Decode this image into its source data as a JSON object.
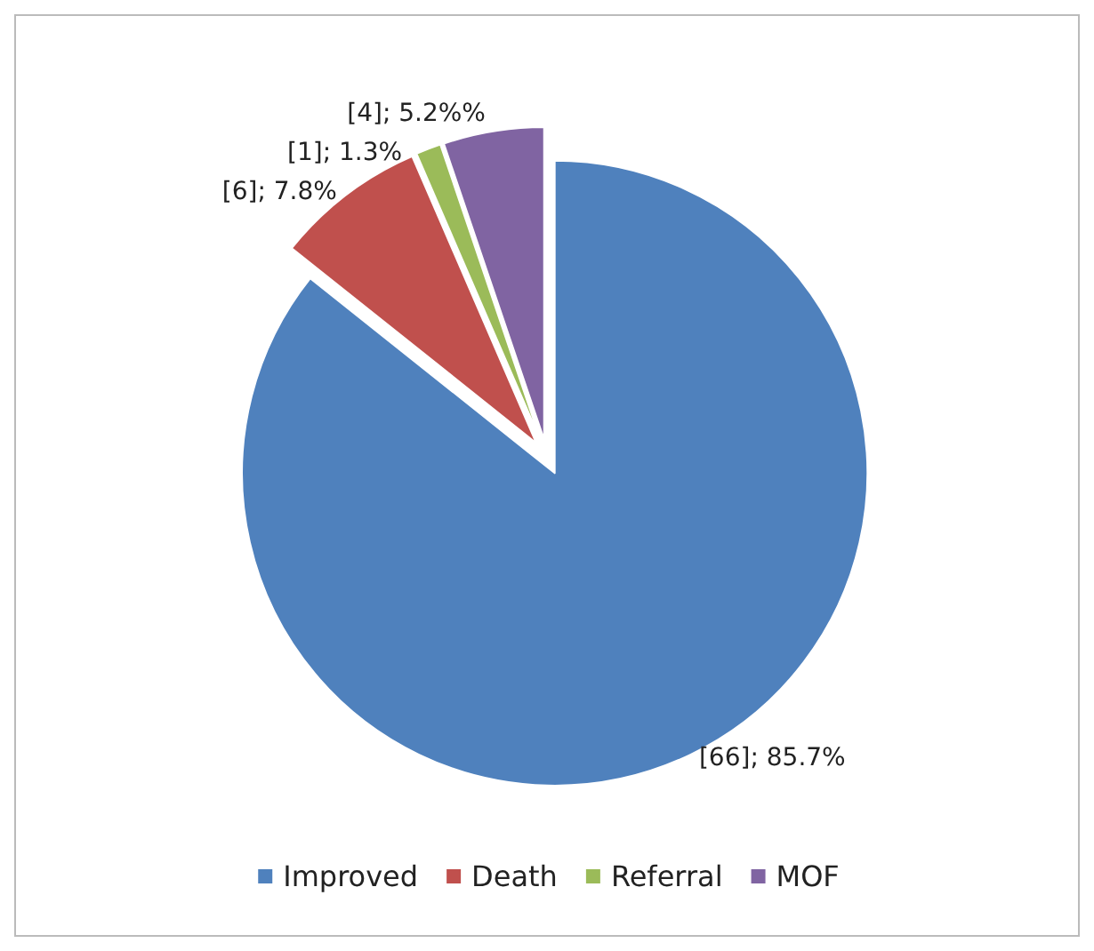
{
  "chart_data": {
    "type": "pie",
    "categories": [
      "Improved",
      "Death",
      "Referral",
      "MOF"
    ],
    "values": [
      66,
      6,
      1,
      4
    ],
    "colors": [
      "#4f81bd",
      "#c0504d",
      "#9bbb59",
      "#8064a2"
    ],
    "value_labels": [
      "[66]; 85.7%",
      "[6]; 7.8%",
      "[1]; 1.3%",
      "[4]; 5.2%%"
    ],
    "legend": "bottom"
  }
}
